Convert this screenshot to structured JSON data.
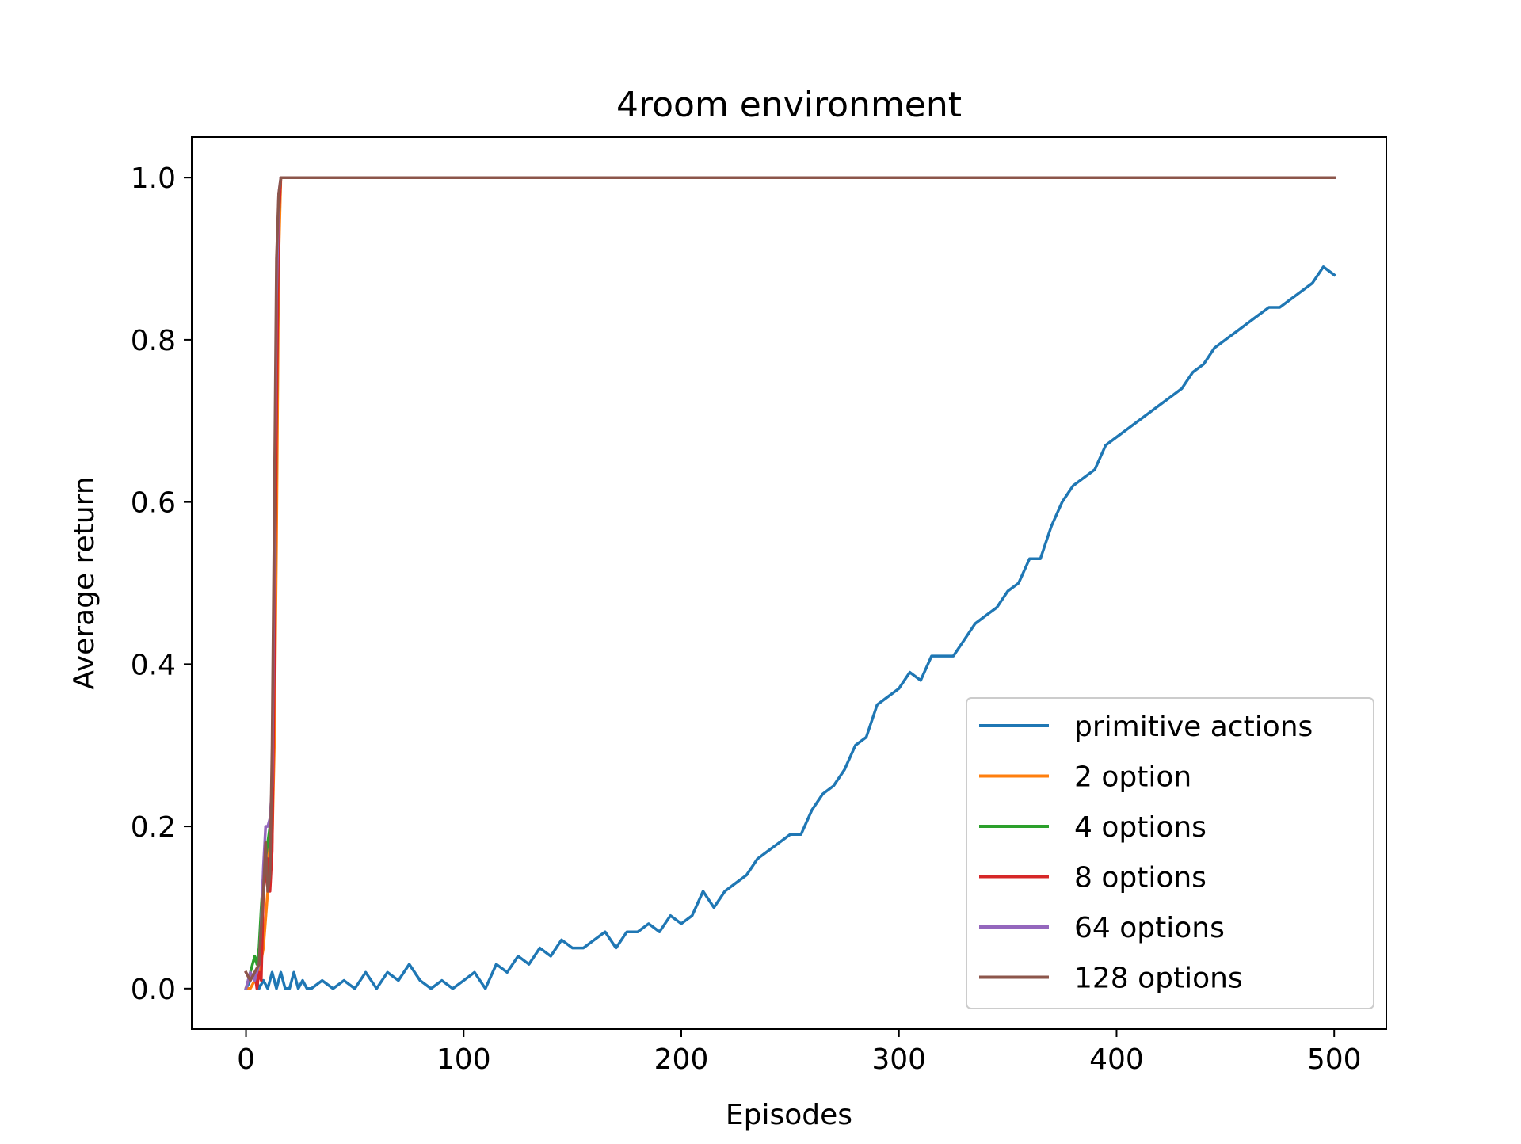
{
  "chart_data": {
    "type": "line",
    "title": "4room environment",
    "xlabel": "Episodes",
    "ylabel": "Average return",
    "xlim": [
      -24.95,
      523.95
    ],
    "ylim": [
      -0.05,
      1.05
    ],
    "xticks": [
      0,
      100,
      200,
      300,
      400,
      500
    ],
    "xtick_labels": [
      "0",
      "100",
      "200",
      "300",
      "400",
      "500"
    ],
    "yticks": [
      0.0,
      0.2,
      0.4,
      0.6,
      0.8,
      1.0
    ],
    "ytick_labels": [
      "0.0",
      "0.2",
      "0.4",
      "0.6",
      "0.8",
      "1.0"
    ],
    "grid": false,
    "legend_position": "lower-right",
    "series": [
      {
        "name": "primitive actions",
        "color": "#1f77b4",
        "x": [
          0,
          2,
          4,
          6,
          8,
          10,
          12,
          14,
          16,
          18,
          20,
          22,
          24,
          26,
          28,
          30,
          35,
          40,
          45,
          50,
          55,
          60,
          65,
          70,
          75,
          80,
          85,
          90,
          95,
          100,
          105,
          110,
          115,
          120,
          125,
          130,
          135,
          140,
          145,
          150,
          155,
          160,
          165,
          170,
          175,
          180,
          185,
          190,
          195,
          200,
          205,
          210,
          215,
          220,
          225,
          230,
          235,
          240,
          245,
          250,
          255,
          260,
          265,
          270,
          275,
          280,
          285,
          290,
          295,
          300,
          305,
          310,
          315,
          320,
          325,
          330,
          335,
          340,
          345,
          350,
          355,
          360,
          365,
          370,
          375,
          380,
          385,
          390,
          395,
          400,
          405,
          410,
          415,
          420,
          425,
          430,
          435,
          440,
          445,
          450,
          455,
          460,
          465,
          470,
          475,
          480,
          485,
          490,
          495,
          500
        ],
        "y": [
          0.0,
          0.01,
          0.02,
          0.0,
          0.01,
          0.0,
          0.02,
          0.0,
          0.02,
          0.0,
          0.0,
          0.02,
          0.0,
          0.01,
          0.0,
          0.0,
          0.01,
          0.0,
          0.01,
          0.0,
          0.02,
          0.0,
          0.02,
          0.01,
          0.03,
          0.01,
          0.0,
          0.01,
          0.0,
          0.01,
          0.02,
          0.0,
          0.03,
          0.02,
          0.04,
          0.03,
          0.05,
          0.04,
          0.06,
          0.05,
          0.05,
          0.06,
          0.07,
          0.05,
          0.07,
          0.07,
          0.08,
          0.07,
          0.09,
          0.08,
          0.09,
          0.12,
          0.1,
          0.12,
          0.13,
          0.14,
          0.16,
          0.17,
          0.18,
          0.19,
          0.19,
          0.22,
          0.24,
          0.25,
          0.27,
          0.3,
          0.31,
          0.35,
          0.36,
          0.37,
          0.39,
          0.38,
          0.41,
          0.41,
          0.41,
          0.43,
          0.45,
          0.46,
          0.47,
          0.49,
          0.5,
          0.53,
          0.53,
          0.57,
          0.6,
          0.62,
          0.63,
          0.64,
          0.67,
          0.68,
          0.69,
          0.7,
          0.71,
          0.72,
          0.73,
          0.74,
          0.76,
          0.77,
          0.79,
          0.8,
          0.81,
          0.82,
          0.83,
          0.84,
          0.84,
          0.85,
          0.86,
          0.87,
          0.89,
          0.88
        ]
      },
      {
        "name": "2 option",
        "color": "#ff7f0e",
        "x": [
          0,
          2,
          4,
          6,
          8,
          10,
          11,
          12,
          13,
          14,
          15,
          16,
          17,
          18,
          20,
          30,
          100,
          200,
          300,
          400,
          500
        ],
        "y": [
          0.0,
          0.0,
          0.01,
          0.02,
          0.05,
          0.12,
          0.2,
          0.18,
          0.3,
          0.55,
          0.9,
          1.0,
          1.0,
          1.0,
          1.0,
          1.0,
          1.0,
          1.0,
          1.0,
          1.0,
          1.0
        ]
      },
      {
        "name": "4 options",
        "color": "#2ca02c",
        "x": [
          0,
          2,
          3,
          4,
          5,
          6,
          7,
          8,
          9,
          10,
          11,
          12,
          13,
          14,
          15,
          16,
          17,
          18,
          20,
          30,
          100,
          200,
          300,
          400,
          500
        ],
        "y": [
          0.0,
          0.02,
          0.03,
          0.04,
          0.03,
          0.05,
          0.1,
          0.14,
          0.16,
          0.18,
          0.2,
          0.25,
          0.4,
          0.7,
          0.95,
          1.0,
          1.0,
          1.0,
          1.0,
          1.0,
          1.0,
          1.0,
          1.0,
          1.0,
          1.0
        ]
      },
      {
        "name": "8 options",
        "color": "#d62728",
        "x": [
          0,
          2,
          4,
          5,
          6,
          7,
          8,
          9,
          10,
          11,
          12,
          13,
          14,
          15,
          16,
          17,
          18,
          20,
          30,
          100,
          200,
          300,
          400,
          500
        ],
        "y": [
          0.02,
          0.01,
          0.02,
          0.0,
          0.02,
          0.01,
          0.12,
          0.14,
          0.16,
          0.12,
          0.17,
          0.4,
          0.7,
          0.95,
          1.0,
          1.0,
          1.0,
          1.0,
          1.0,
          1.0,
          1.0,
          1.0,
          1.0,
          1.0
        ]
      },
      {
        "name": "64 options",
        "color": "#9467bd",
        "x": [
          0,
          2,
          4,
          6,
          7,
          8,
          9,
          10,
          11,
          12,
          13,
          14,
          15,
          16,
          17,
          18,
          20,
          30,
          100,
          200,
          300,
          400,
          500
        ],
        "y": [
          0.0,
          0.02,
          0.01,
          0.03,
          0.08,
          0.15,
          0.2,
          0.2,
          0.21,
          0.25,
          0.55,
          0.85,
          0.98,
          1.0,
          1.0,
          1.0,
          1.0,
          1.0,
          1.0,
          1.0,
          1.0,
          1.0,
          1.0
        ]
      },
      {
        "name": "128 options",
        "color": "#8c564b",
        "x": [
          0,
          2,
          4,
          6,
          8,
          9,
          10,
          11,
          12,
          13,
          14,
          15,
          16,
          17,
          18,
          20,
          30,
          100,
          200,
          300,
          400,
          500
        ],
        "y": [
          0.02,
          0.01,
          0.02,
          0.03,
          0.12,
          0.18,
          0.12,
          0.14,
          0.3,
          0.6,
          0.9,
          0.98,
          1.0,
          1.0,
          1.0,
          1.0,
          1.0,
          1.0,
          1.0,
          1.0,
          1.0,
          1.0
        ]
      }
    ]
  }
}
